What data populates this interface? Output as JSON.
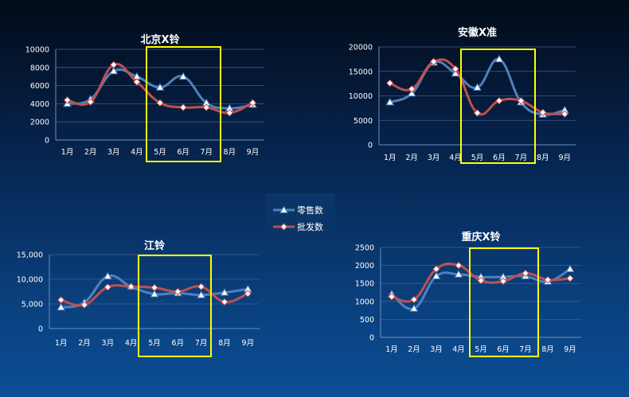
{
  "colors": {
    "retail": "#4f81bd",
    "wholesale": "#c0504d",
    "highlight": "#ffff00",
    "grid": "#3a5f8f",
    "axis": "#6c8ebf"
  },
  "legend": {
    "items": [
      {
        "label": "零售数",
        "color": "#4f81bd",
        "marker": "triangle"
      },
      {
        "label": "批发数",
        "color": "#c0504d",
        "marker": "diamond"
      }
    ]
  },
  "chart_data": [
    {
      "type": "line",
      "title": "北京X铃",
      "categories": [
        "1月",
        "2月",
        "3月",
        "4月",
        "5月",
        "6月",
        "7月",
        "8月",
        "9月"
      ],
      "ylim": [
        0,
        10000
      ],
      "yticks": [
        0,
        2000,
        4000,
        6000,
        8000,
        10000
      ],
      "ytick_labels": [
        "0",
        "2000",
        "4000",
        "6000",
        "8000",
        "10000"
      ],
      "highlight_categories": [
        "5月",
        "6月",
        "7月"
      ],
      "series": [
        {
          "name": "零售数",
          "values": [
            4000,
            4500,
            7600,
            7000,
            5800,
            7000,
            4100,
            3500,
            3900
          ]
        },
        {
          "name": "批发数",
          "values": [
            4400,
            4200,
            8300,
            6400,
            4100,
            3600,
            3600,
            3000,
            4100
          ]
        }
      ]
    },
    {
      "type": "line",
      "title": "安徽X准",
      "categories": [
        "1月",
        "2月",
        "3月",
        "4月",
        "5月",
        "6月",
        "7月",
        "8月",
        "9月"
      ],
      "ylim": [
        0,
        20000
      ],
      "yticks": [
        0,
        5000,
        10000,
        15000,
        20000
      ],
      "ytick_labels": [
        "0",
        "5000",
        "10000",
        "15000",
        "20000"
      ],
      "highlight_categories": [
        "5月",
        "6月",
        "7月"
      ],
      "series": [
        {
          "name": "零售数",
          "values": [
            8700,
            10500,
            16800,
            14600,
            11700,
            17500,
            8700,
            6200,
            7100
          ]
        },
        {
          "name": "批发数",
          "values": [
            12600,
            11400,
            17000,
            15500,
            6500,
            9000,
            9000,
            6600,
            6300
          ]
        }
      ]
    },
    {
      "type": "line",
      "title": "江铃",
      "categories": [
        "1月",
        "2月",
        "3月",
        "4月",
        "5月",
        "6月",
        "7月",
        "8月",
        "9月"
      ],
      "ylim": [
        0,
        15000
      ],
      "yticks": [
        0,
        5000,
        10000,
        15000
      ],
      "ytick_labels": [
        "0",
        "5,000",
        "10,000",
        "15,000"
      ],
      "highlight_categories": [
        "5月",
        "6月",
        "7月"
      ],
      "series": [
        {
          "name": "零售数",
          "values": [
            4300,
            5300,
            10600,
            8500,
            7000,
            7200,
            6800,
            7300,
            8000
          ]
        },
        {
          "name": "批发数",
          "values": [
            5800,
            4800,
            8400,
            8500,
            8300,
            7500,
            8500,
            5400,
            7100
          ]
        }
      ]
    },
    {
      "type": "line",
      "title": "重庆X铃",
      "categories": [
        "1月",
        "2月",
        "3月",
        "4月",
        "5月",
        "6月",
        "7月",
        "8月",
        "9月"
      ],
      "ylim": [
        0,
        2500
      ],
      "yticks": [
        0,
        500,
        1000,
        1500,
        2000,
        2500
      ],
      "ytick_labels": [
        "0",
        "500",
        "1000",
        "1500",
        "2000",
        "2500"
      ],
      "highlight_categories": [
        "5月",
        "6月",
        "7月"
      ],
      "series": [
        {
          "name": "零售数",
          "values": [
            1200,
            800,
            1700,
            1750,
            1680,
            1680,
            1700,
            1550,
            1900
          ]
        },
        {
          "name": "批发数",
          "values": [
            1130,
            1050,
            1900,
            2000,
            1580,
            1560,
            1780,
            1600,
            1640
          ]
        }
      ]
    }
  ]
}
